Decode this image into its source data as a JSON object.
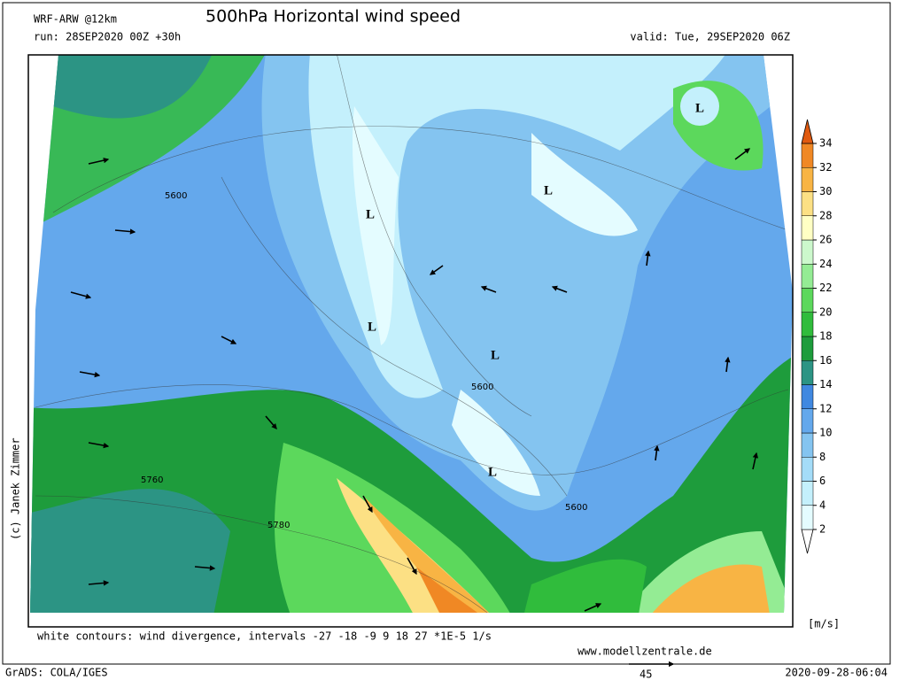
{
  "header": {
    "model": "WRF-ARW @12km",
    "title": "500hPa Horizontal wind speed",
    "run": "run: 28SEP2020 00Z +30h",
    "valid": "valid: Tue, 29SEP2020 06Z"
  },
  "colorbar": {
    "ticks": [
      2,
      4,
      6,
      8,
      10,
      12,
      14,
      16,
      18,
      20,
      22,
      24,
      26,
      28,
      30,
      32,
      34
    ],
    "colors": [
      "#ffffff",
      "#e4fcff",
      "#c4f0fc",
      "#a4dcf8",
      "#84c4f0",
      "#64a8ec",
      "#4088e0",
      "#2c9484",
      "#1e9c3c",
      "#30bc3c",
      "#5cd85c",
      "#94ec94",
      "#ccf8cc",
      "#ffffc4",
      "#fce084",
      "#f8b444",
      "#f08824",
      "#e05a10"
    ],
    "unit": "[m/s]"
  },
  "map": {
    "pressure_labels": [
      "L",
      "L",
      "L",
      "L",
      "L",
      "L"
    ],
    "contour_labels": [
      "5600",
      "5600",
      "5600",
      "5760",
      "5780"
    ]
  },
  "footer": {
    "note": "white contours: wind divergence, intervals -27 -18 -9 9 18 27 *1E-5 1/s",
    "website": "www.modellzentrale.de",
    "software": "GrADS: COLA/IGES",
    "timestamp": "2020-09-28-06:04",
    "scale_arrow": 45,
    "copyright": "(c) Janek Zimmer"
  }
}
